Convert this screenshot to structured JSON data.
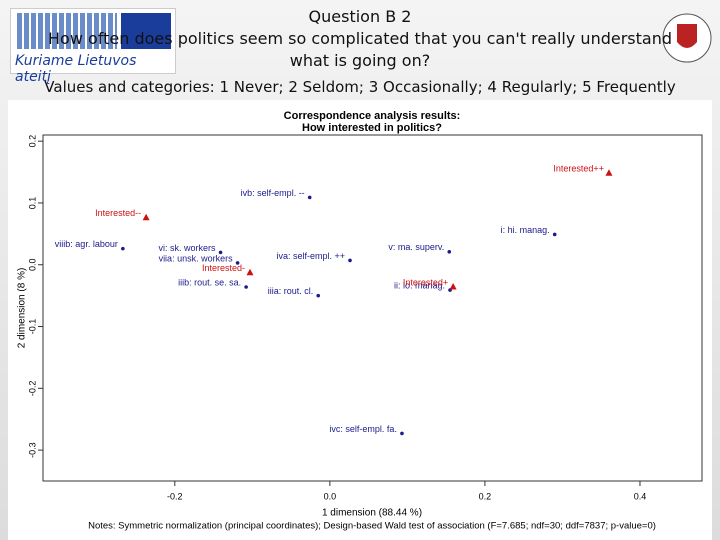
{
  "slide": {
    "title": "Question B 2",
    "question": "How often does politics seem so complicated that you can't really understand what is going on?",
    "scale": "Values and categories: 1 Never; 2 Seldom; 3 Occasionally; 4 Regularly; 5 Frequently",
    "logo_text": "Kuriame Lietuvos ateitį"
  },
  "chart_data": {
    "type": "scatter",
    "title": "Correspondence analysis results:",
    "subtitle": "How interested in politics?",
    "x_label": "1 dimension (88.44 %)",
    "y_label": "2 dimension (8 %)",
    "note": "Notes: Symmetric normalization (principal coordinates); Design-based Wald test of association (F=7.685; ndf=30; ddf=7837; p-value=0)",
    "point_labels": [
      "Interested++",
      "ivb: self-empl. --",
      "Interested--",
      "i: hi. manag.",
      "viiib: agr. labour",
      "vi: sk. workers",
      "v: ma. superv.",
      "viia: unsk. workers",
      "iva: self-empl. ++",
      "Interested-",
      "iiib: rout. se. sa.",
      "iiia: rout. cl.",
      "ii: lo. manag.",
      "Interested+",
      "ivc: self-empl. fa."
    ],
    "x": [
      0.36,
      -0.026,
      -0.237,
      0.29,
      -0.267,
      -0.141,
      0.154,
      -0.119,
      0.026,
      -0.103,
      -0.108,
      -0.015,
      0.155,
      0.159,
      0.093
    ],
    "values": [
      0.148,
      0.109,
      0.076,
      0.049,
      0.026,
      0.02,
      0.021,
      0.003,
      0.007,
      -0.013,
      -0.036,
      -0.05,
      -0.041,
      -0.036,
      -0.273
    ],
    "colors": [
      "#cc1111",
      "#1a1a8c",
      "#cc1111",
      "#1a1a8c",
      "#1a1a8c",
      "#1a1a8c",
      "#1a1a8c",
      "#1a1a8c",
      "#1a1a8c",
      "#cc1111",
      "#1a1a8c",
      "#1a1a8c",
      "#1a1a8c",
      "#cc1111",
      "#1a1a8c"
    ],
    "markers": [
      "triangle",
      "dot",
      "triangle",
      "dot",
      "dot",
      "dot",
      "dot",
      "dot",
      "dot",
      "triangle",
      "dot",
      "dot",
      "dot",
      "triangle",
      "dot"
    ],
    "xlim": [
      -0.37,
      0.48
    ],
    "ylim": [
      -0.35,
      0.21
    ],
    "xticks": [
      -0.2,
      {
        "value": 0,
        "label": "0.0"
      },
      0.2,
      0.4
    ],
    "yticks": [
      -0.3,
      -0.2,
      -0.1,
      {
        "value": 0,
        "label": "0.0"
      },
      0.1,
      0.2
    ]
  }
}
